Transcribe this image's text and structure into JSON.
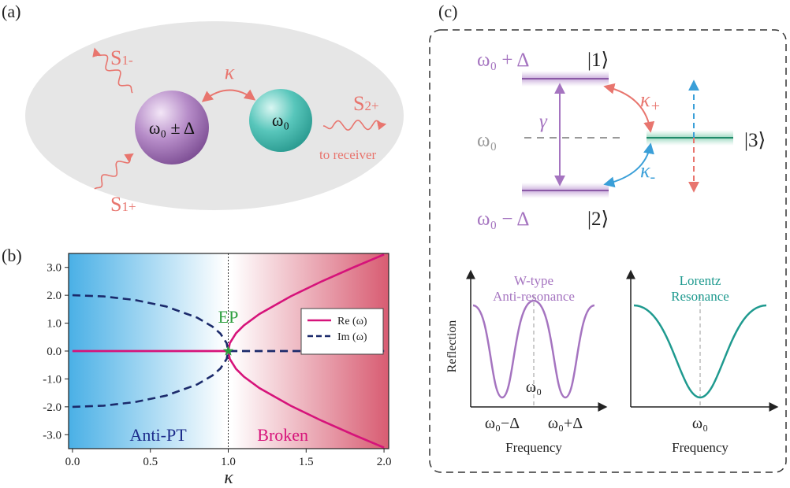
{
  "panel_labels": [
    "(a)",
    "(b)",
    "(c)"
  ],
  "panel_a": {
    "source_1_minus": {
      "main": "S",
      "sub": "1-"
    },
    "coupling": "κ",
    "output": {
      "main": "S",
      "sub": "2+"
    },
    "resonator_1": "ω₀ ± Δ",
    "resonator_2": "ω₀",
    "receiver_note": "to receiver",
    "source_1_plus": {
      "main": "S",
      "sub": "1+"
    }
  },
  "chart_data": {
    "type": "line",
    "xlabel": "κ",
    "x": [
      0,
      0.2,
      0.4,
      0.6,
      0.8,
      0.9,
      0.95,
      0.99,
      1.0,
      1.01,
      1.05,
      1.1,
      1.2,
      1.4,
      1.6,
      1.8,
      2.0
    ],
    "series": [
      {
        "name": "Re (ω)",
        "color": "#d6137a",
        "dashed": false,
        "values": [
          0,
          0,
          0,
          0,
          0,
          0,
          0,
          0,
          0,
          0.284,
          0.64,
          0.917,
          1.327,
          1.96,
          2.498,
          2.993,
          3.464
        ]
      },
      {
        "name": "Im (ω)",
        "color": "#1b2a6b",
        "dashed": true,
        "values": [
          2,
          1.96,
          1.833,
          1.6,
          1.2,
          0.872,
          0.624,
          0.282,
          0,
          0,
          0,
          0,
          0,
          0,
          0,
          0,
          0
        ]
      },
      {
        "color": "#d6137a",
        "dashed": false,
        "values": [
          0,
          0,
          0,
          0,
          0,
          0,
          0,
          0,
          0,
          -0.284,
          -0.64,
          -0.917,
          -1.327,
          -1.96,
          -2.498,
          -2.993,
          -3.464
        ]
      },
      {
        "color": "#1b2a6b",
        "dashed": true,
        "values": [
          -2,
          -1.96,
          -1.833,
          -1.6,
          -1.2,
          -0.872,
          -0.624,
          -0.282,
          0,
          0,
          0,
          0,
          0,
          0,
          0,
          0,
          0
        ]
      }
    ],
    "xlim": [
      -0.025,
      2.03
    ],
    "ylim": [
      -3.5,
      3.5
    ],
    "xticks": [
      {
        "value": 0,
        "label": "0.0"
      },
      0.5,
      {
        "value": 1,
        "label": "1.0"
      },
      1.5,
      {
        "value": 2,
        "label": "2.0"
      }
    ],
    "yticks": [
      {
        "value": 3,
        "label": "3.0"
      },
      {
        "value": 2,
        "label": "2.0"
      },
      {
        "value": 1,
        "label": "1.0"
      },
      {
        "value": 0,
        "label": "0.0"
      },
      {
        "value": -1,
        "label": "-1.0"
      },
      {
        "value": -2,
        "label": "-2.0"
      },
      {
        "value": -3,
        "label": "-3.0"
      }
    ],
    "legend": "center right",
    "exceptional_point": {
      "label": "EP",
      "x": 1,
      "y": 0,
      "color": "#2e9e3e"
    },
    "region_labels": [
      "Anti-PT",
      "Broken"
    ]
  },
  "panel_c": {
    "level_1": {
      "energy": "ω₀ + Δ",
      "state": "|1⟩"
    },
    "level_2": {
      "energy": "ω₀ − Δ",
      "state": "|2⟩"
    },
    "center_energy": "ω₀",
    "level_3_state": "|3⟩",
    "gamma": "γ",
    "kappa_plus": {
      "main": "κ",
      "sub": "+"
    },
    "kappa_minus": {
      "main": "κ",
      "sub": "-"
    },
    "plot_left": {
      "title": [
        "W-type",
        "Anti-resonance"
      ],
      "ylabel": "Reflection",
      "center": "ω₀",
      "ticks": [
        "ω₀−Δ",
        "ω₀+Δ"
      ],
      "xlabel": "Frequency"
    },
    "plot_right": {
      "title": [
        "Lorentz",
        "Resonance"
      ],
      "tick": "ω₀",
      "xlabel": "Frequency"
    }
  }
}
